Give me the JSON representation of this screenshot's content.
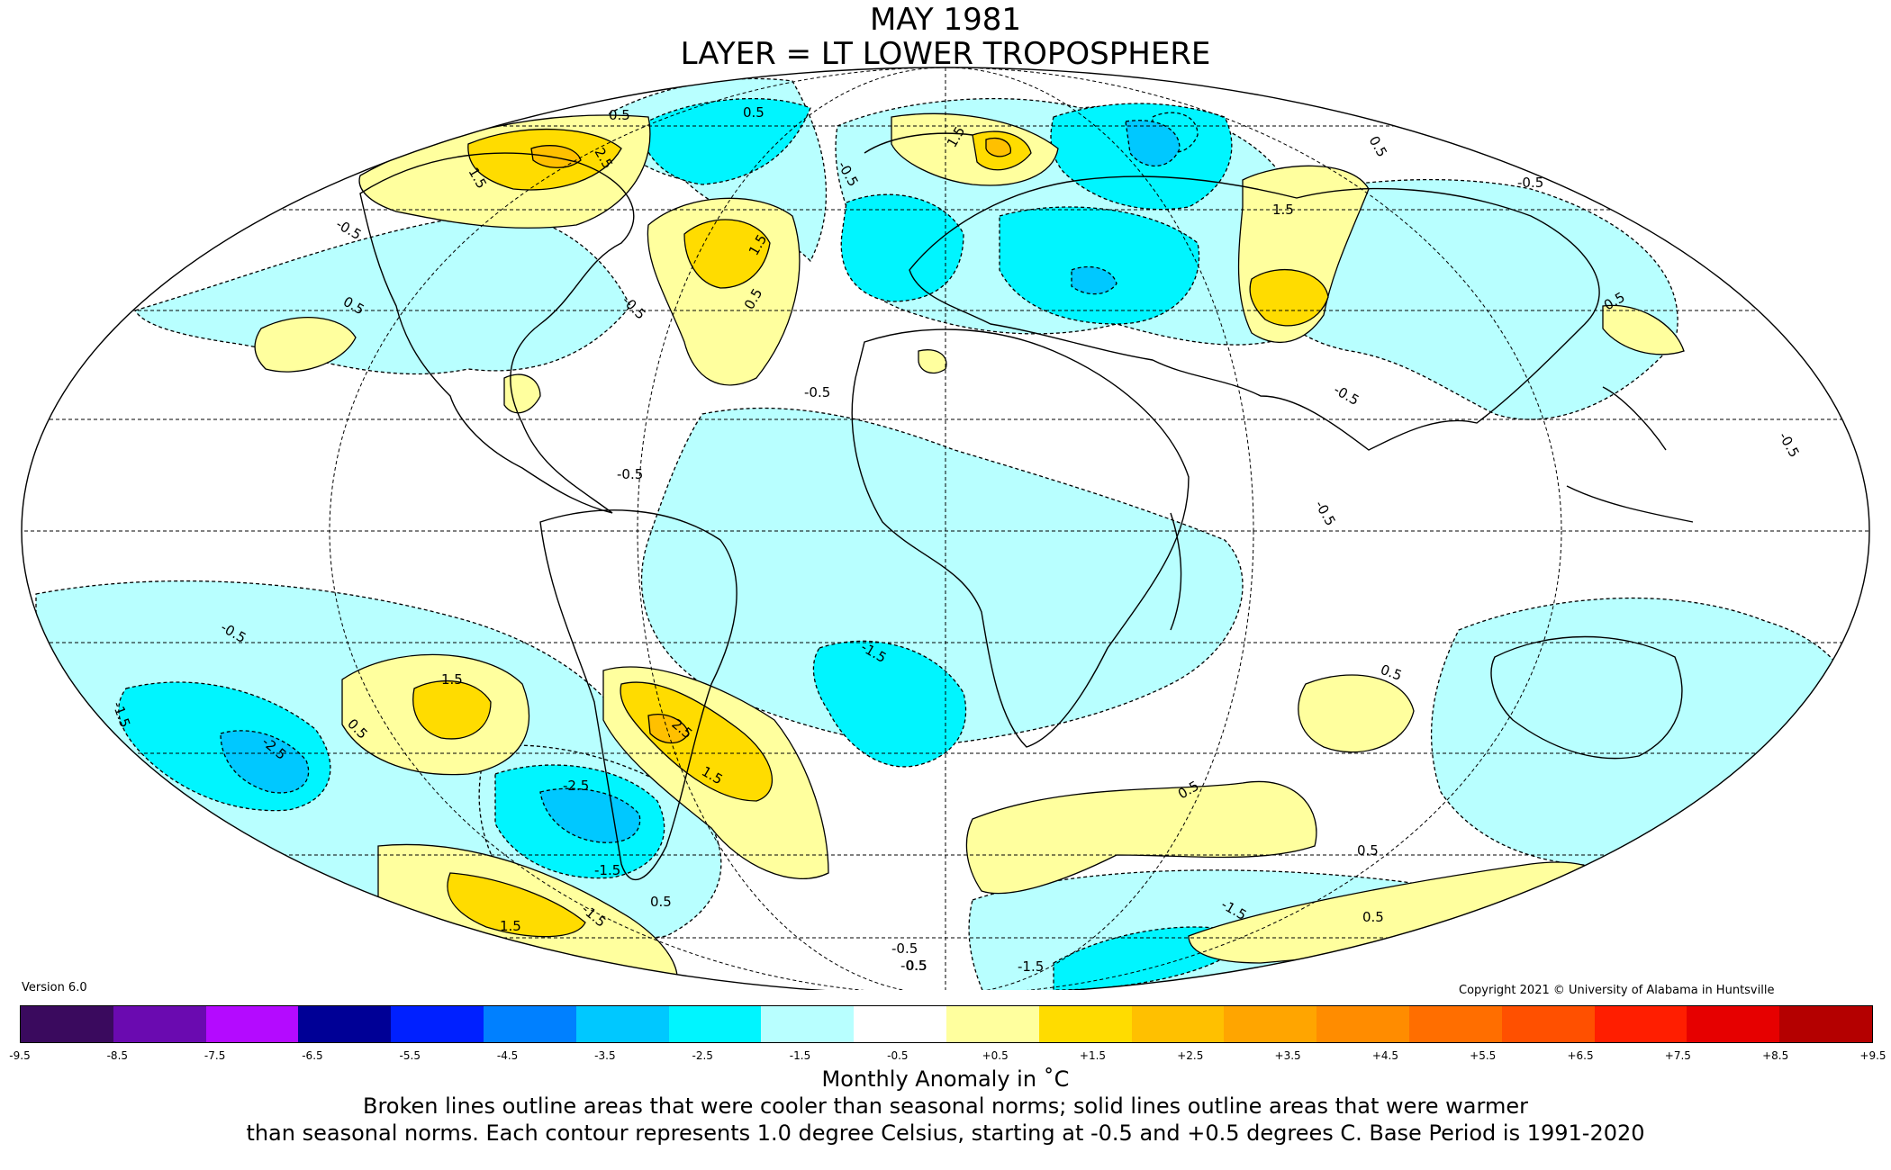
{
  "title": "MAY 1981",
  "subtitle": "LAYER = LT LOWER TROPOSPHERE",
  "version": "Version 6.0",
  "copyright": "Copyright 2021 © University of Alabama in Huntsville",
  "legend": {
    "unit_label": "Monthly Anomaly in ˚C",
    "ticks": [
      "-9.5",
      "-8.5",
      "-7.5",
      "-6.5",
      "-5.5",
      "-4.5",
      "-3.5",
      "-2.5",
      "-1.5",
      "-0.5",
      "+0.5",
      "+1.5",
      "+2.5",
      "+3.5",
      "+4.5",
      "+5.5",
      "+6.5",
      "+7.5",
      "+8.5",
      "+9.5"
    ],
    "colors": [
      "#3a0a5e",
      "#6a0ab0",
      "#b40aff",
      "#000096",
      "#0020ff",
      "#0080ff",
      "#00c8ff",
      "#00f5ff",
      "#b8ffff",
      "#ffffff",
      "#ffff9e",
      "#ffdc00",
      "#ffc000",
      "#ffa500",
      "#ff8c00",
      "#ff6e00",
      "#ff5000",
      "#ff1e00",
      "#e60000",
      "#b40000"
    ]
  },
  "caption_line1": "Broken lines outline areas that were cooler than seasonal norms; solid lines outline areas that were warmer",
  "caption_line2": "than seasonal norms. Each contour represents 1.0 degree Celsius, starting at -0.5 and +0.5 degrees C. Base Period is 1991-2020",
  "contour_labels": {
    "l1": "0.5",
    "l2": "2.5",
    "l3": "1.5",
    "l4": "0.5",
    "l5": "1.5",
    "l6": "0.5",
    "l7": "-0.5",
    "l8": "0.5",
    "l9": "-0.5",
    "l10": "1.5",
    "l11": "-0.5",
    "l12": "1.5",
    "l13": "0.5",
    "l14": "-0.5",
    "l15": "0.5",
    "l16": "-0.5",
    "l17": "-0.5",
    "l18": "-0.5",
    "l19": "-0.5",
    "l20": "1.5",
    "l21": "0.5",
    "l22": "-1.5",
    "l23": "-2.5",
    "l24": "-2.5",
    "l25": "-1.5",
    "l26": "2.5",
    "l27": "1.5",
    "l28": "-1.5",
    "l29": "0.5",
    "l30": "0.5",
    "l31": "0.5",
    "l32": "-1.5",
    "l33": "0.5",
    "l34": "1.5",
    "l35": "-0.5",
    "l36": "-0.5",
    "l37": "-1.5",
    "l38": "0.5",
    "l39": "-1.5",
    "l40": "0.5",
    "l41": "-0.5",
    "l42": "-0.5"
  }
}
